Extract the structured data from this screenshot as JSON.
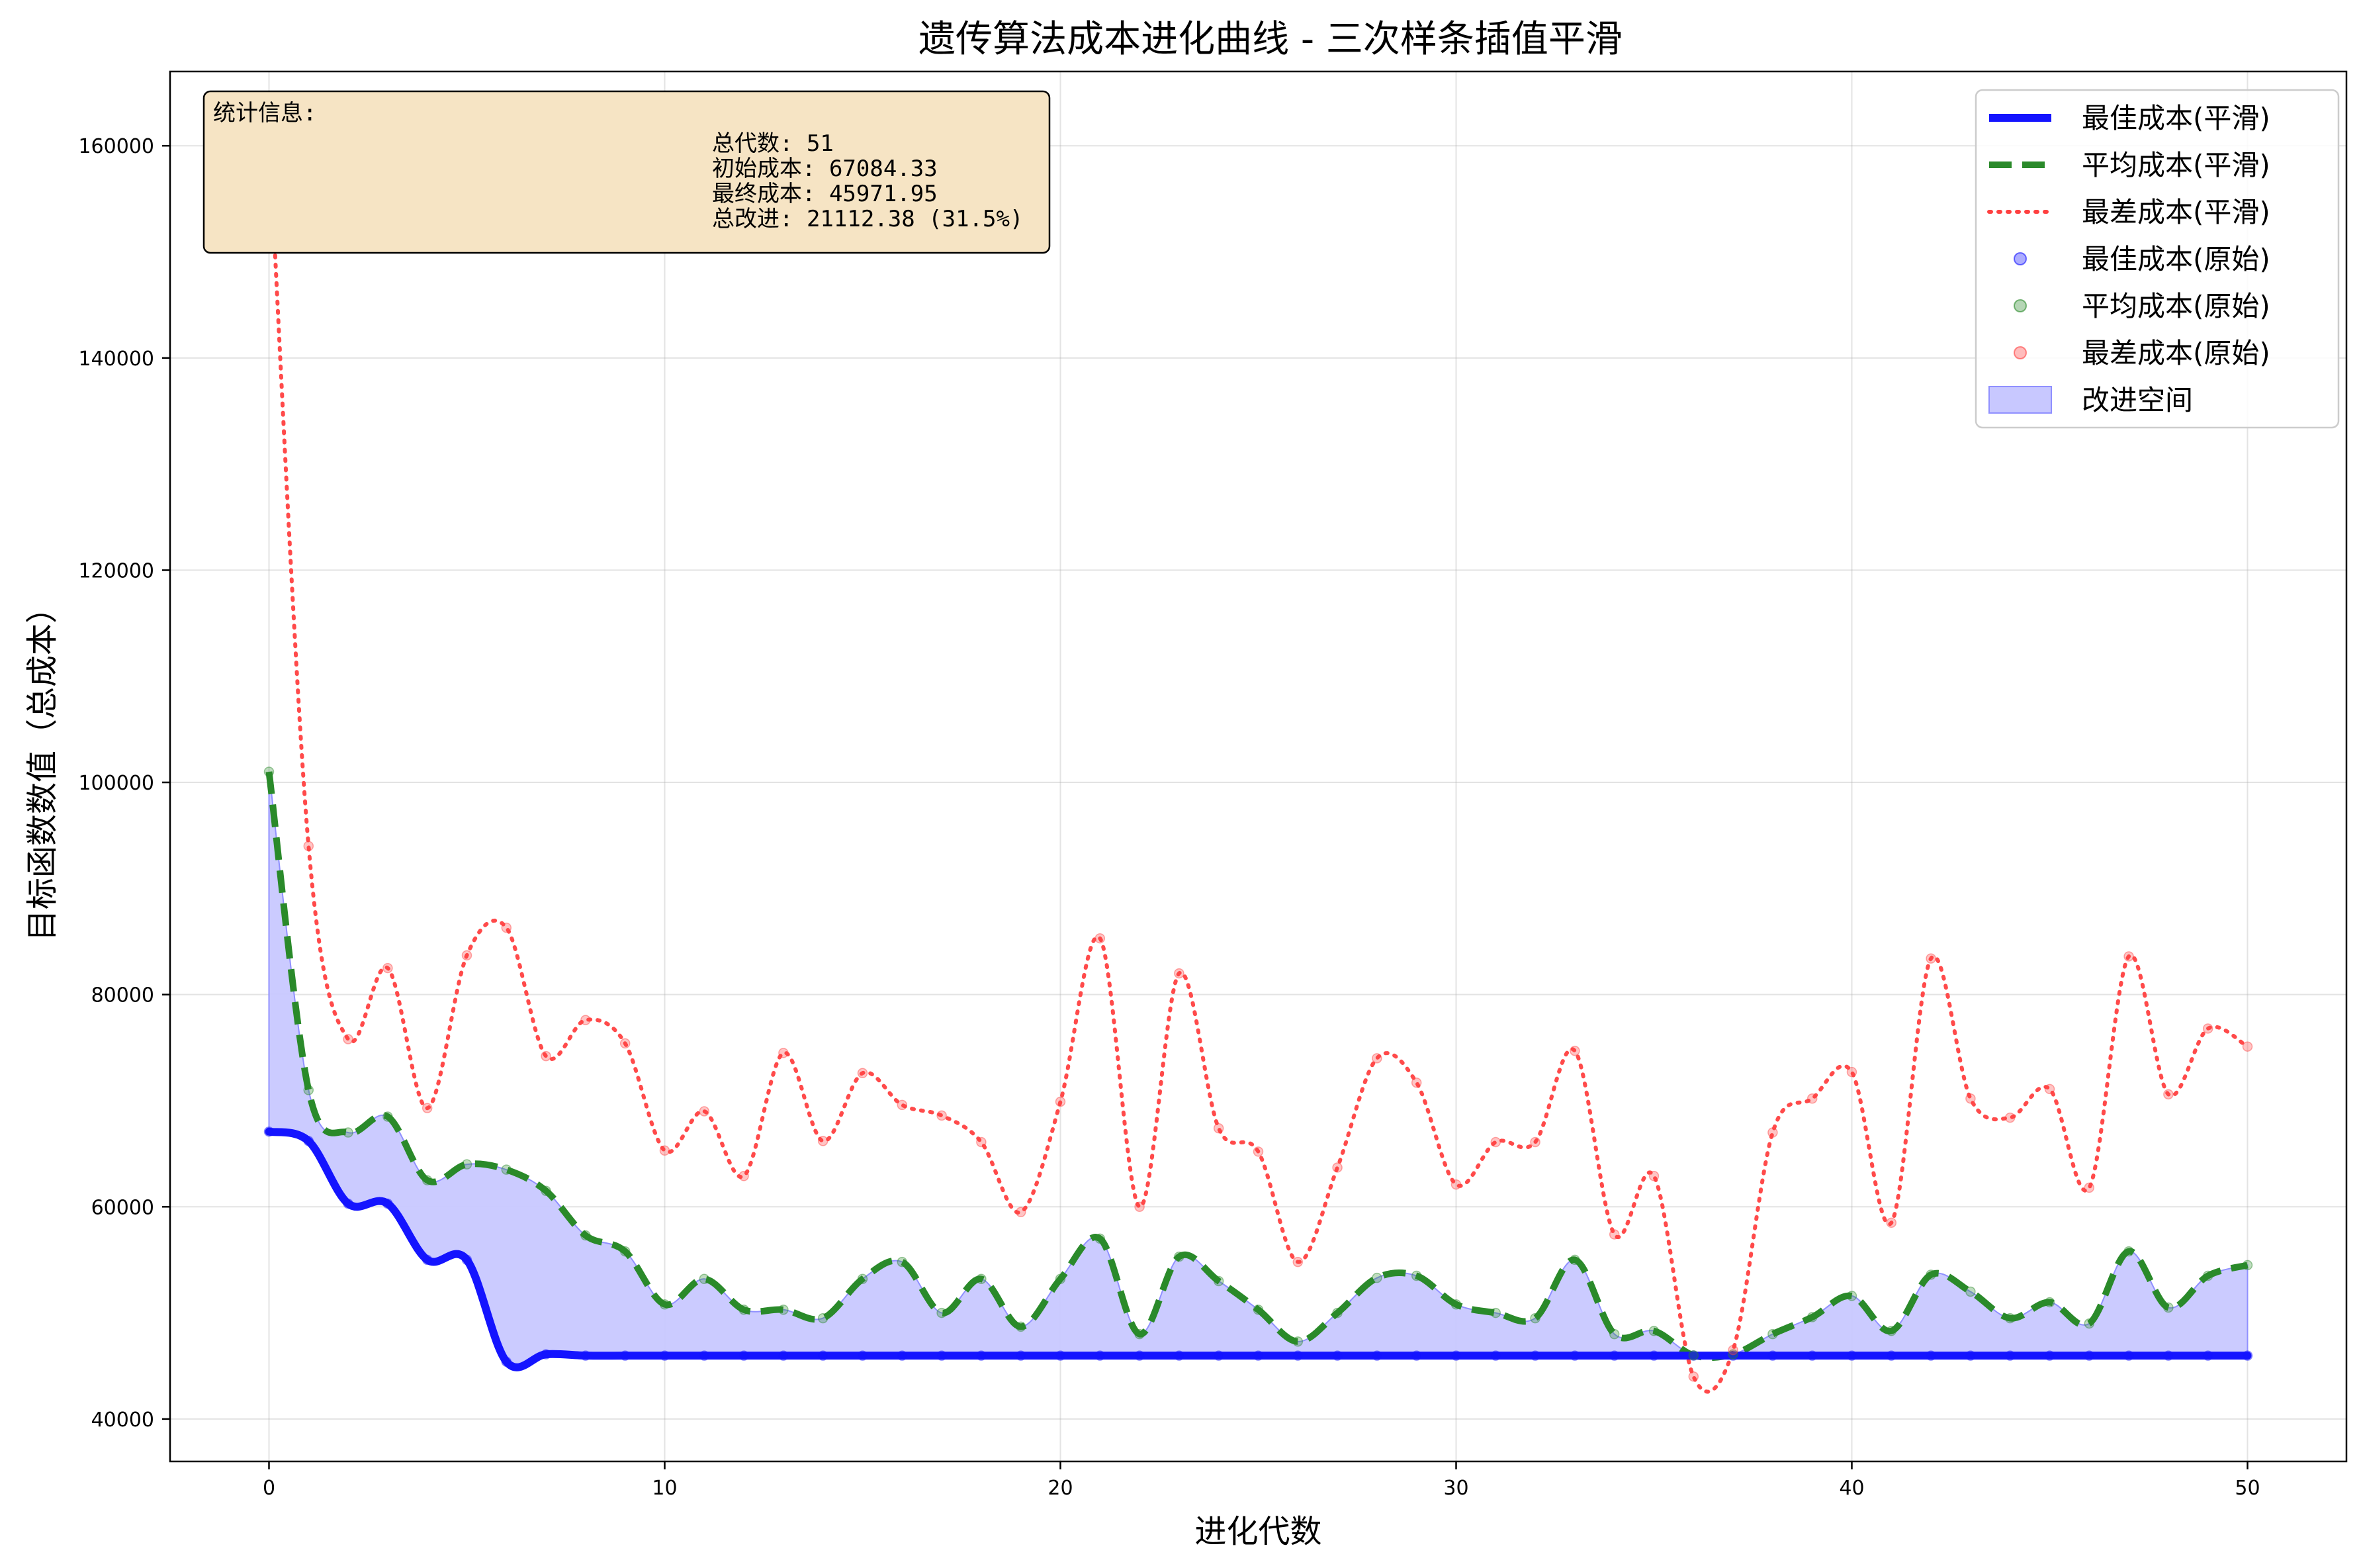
{
  "chart_data": {
    "type": "line",
    "title": "遗传算法成本进化曲线 - 三次样条插值平滑",
    "xlabel": "进化代数",
    "ylabel": "目标函数数值（总成本）",
    "xlim": [
      -2.5,
      52.5
    ],
    "ylim": [
      36000,
      167000
    ],
    "x_ticks": [
      0,
      10,
      20,
      30,
      40,
      50
    ],
    "y_ticks": [
      40000,
      60000,
      80000,
      100000,
      120000,
      140000,
      160000
    ],
    "grid": true,
    "legend_position": "top-right",
    "x": [
      0,
      1,
      2,
      3,
      4,
      5,
      6,
      7,
      8,
      9,
      10,
      11,
      12,
      13,
      14,
      15,
      16,
      17,
      18,
      19,
      20,
      21,
      22,
      23,
      24,
      25,
      26,
      27,
      28,
      29,
      30,
      31,
      32,
      33,
      34,
      35,
      36,
      37,
      38,
      39,
      40,
      41,
      42,
      43,
      44,
      45,
      46,
      47,
      48,
      49,
      50
    ],
    "series": [
      {
        "name": "最佳成本(平滑)",
        "kind": "line",
        "style": "solid",
        "color": "#1414ff",
        "values": [
          67084,
          66200,
          60300,
          60300,
          55000,
          55000,
          45400,
          46100,
          45972,
          45972,
          45972,
          45972,
          45972,
          45972,
          45972,
          45972,
          45972,
          45972,
          45972,
          45972,
          45972,
          45972,
          45972,
          45972,
          45972,
          45972,
          45972,
          45972,
          45972,
          45972,
          45972,
          45972,
          45972,
          45972,
          45972,
          45972,
          45972,
          45972,
          45972,
          45972,
          45972,
          45972,
          45972,
          45972,
          45972,
          45972,
          45972,
          45972,
          45972,
          45972,
          45972
        ]
      },
      {
        "name": "平均成本(平滑)",
        "kind": "line",
        "style": "dashed",
        "color": "#2a8a2a",
        "values": [
          101000,
          71000,
          67000,
          68500,
          62500,
          64000,
          63500,
          61500,
          57300,
          55800,
          50800,
          53200,
          50300,
          50300,
          49500,
          53200,
          54800,
          50000,
          53200,
          48700,
          53200,
          57000,
          48000,
          55300,
          53000,
          50300,
          47300,
          50000,
          53300,
          53500,
          50800,
          50000,
          49500,
          55000,
          48000,
          48300,
          46000,
          46100,
          48000,
          49600,
          51600,
          48300,
          53600,
          52000,
          49500,
          51000,
          49000,
          55800,
          50500,
          53500,
          54500
        ]
      },
      {
        "name": "最差成本(平滑)",
        "kind": "line",
        "style": "dotted",
        "color": "#ff4040",
        "values": [
          161000,
          94000,
          75800,
          82500,
          69300,
          83700,
          86300,
          74200,
          77600,
          75400,
          65300,
          69000,
          62900,
          74500,
          66200,
          72600,
          69600,
          68600,
          66100,
          59500,
          69900,
          85300,
          60000,
          82000,
          67400,
          65200,
          54800,
          63700,
          74000,
          71700,
          62100,
          66100,
          66100,
          74700,
          57400,
          62900,
          44000,
          46500,
          67000,
          70200,
          72700,
          58500,
          83400,
          70200,
          68400,
          71100,
          61800,
          83600,
          70600,
          76800,
          75100
        ]
      }
    ],
    "legend": [
      {
        "label": "最佳成本(平滑)",
        "marker": "line-solid",
        "color": "#1414ff"
      },
      {
        "label": "平均成本(平滑)",
        "marker": "line-dashed",
        "color": "#2a8a2a"
      },
      {
        "label": "最差成本(平滑)",
        "marker": "line-dotted",
        "color": "#ff4040"
      },
      {
        "label": "最佳成本(原始)",
        "marker": "dot",
        "color": "#1414ff"
      },
      {
        "label": "平均成本(原始)",
        "marker": "dot",
        "color": "#2a8a2a"
      },
      {
        "label": "最差成本(原始)",
        "marker": "dot",
        "color": "#ff4040"
      },
      {
        "label": "改进空间",
        "marker": "patch",
        "color": "#8080ff"
      }
    ],
    "stats": {
      "heading": "统计信息:",
      "lines": [
        "总代数: 51",
        "初始成本: 67084.33",
        "最终成本: 45971.95",
        "总改进: 21112.38 (31.5%)"
      ]
    },
    "fill_color": "#c8c8ff",
    "stats_box_color": "#f6e4c4"
  }
}
